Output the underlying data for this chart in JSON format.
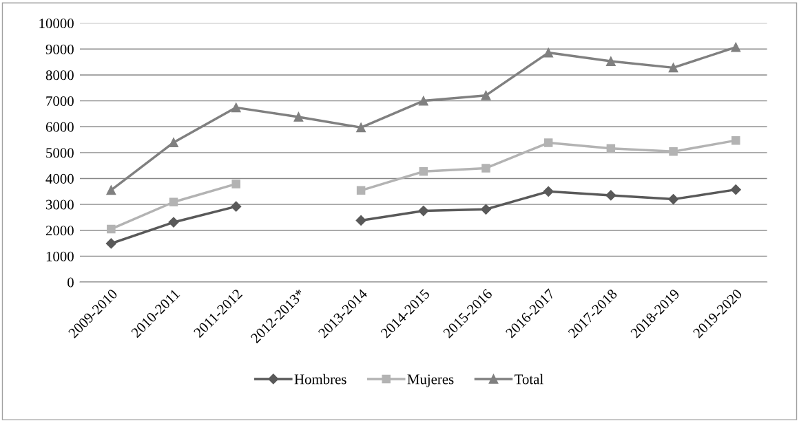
{
  "chart_data": {
    "type": "line",
    "categories": [
      "2009-2010",
      "2010-2011",
      "2011-2012",
      "2012-2013*",
      "2013-2014",
      "2014-2015",
      "2015-2016",
      "2016-2017",
      "2017-2018",
      "2018-2019",
      "2019-2020"
    ],
    "series": [
      {
        "name": "Hombres",
        "color": "#595959",
        "marker": "diamond",
        "values": [
          1490,
          2310,
          2920,
          null,
          2380,
          2750,
          2810,
          3500,
          3350,
          3200,
          3570
        ]
      },
      {
        "name": "Mujeres",
        "color": "#b3b3b3",
        "marker": "square",
        "values": [
          2050,
          3090,
          3790,
          null,
          3540,
          4270,
          4400,
          5380,
          5160,
          5040,
          5470
        ]
      },
      {
        "name": "Total",
        "color": "#808080",
        "marker": "triangle",
        "values": [
          3550,
          5390,
          6740,
          6380,
          5970,
          7000,
          7210,
          8860,
          8530,
          8280,
          9070
        ]
      }
    ],
    "ylim": [
      0,
      10000
    ],
    "yticks": [
      0,
      1000,
      2000,
      3000,
      4000,
      5000,
      6000,
      7000,
      8000,
      9000,
      10000
    ],
    "grid": "y",
    "legend": "bottom",
    "line_style": "solid"
  }
}
